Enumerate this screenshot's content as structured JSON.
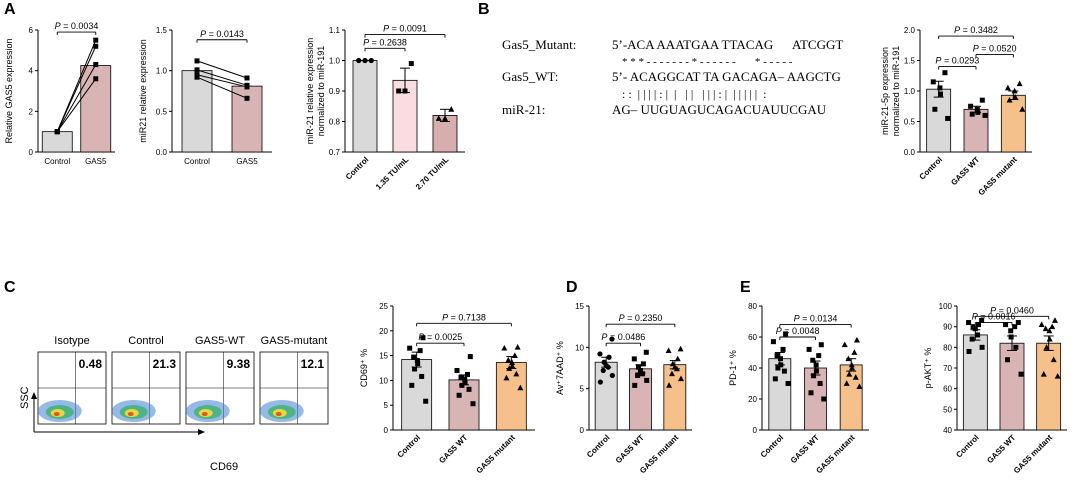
{
  "panel_labels": {
    "A": "A",
    "B": "B",
    "C": "C",
    "D": "D",
    "E": "E"
  },
  "sequence": {
    "rows": [
      {
        "name": "Gas5_Mutant:",
        "seq": "5’-ACA AAATGAA TTACAG      ATCGGT"
      },
      {
        "name": "",
        "seq": "* * * - - - - - - - * - - - - - -       * - - - - -"
      },
      {
        "name": "Gas5_WT:",
        "seq": "5’- ACAGGCAT TA GACAGA– AAGCTG"
      },
      {
        "name": "",
        "seq": ": :  | | | | : |  |   | |   | | | : |  | | | | |  :"
      },
      {
        "name": "miR-21:",
        "seq": "AG– UUGUAGUCAGACUAUUCGAU"
      }
    ]
  },
  "flow": {
    "y_axis_label": "SSC",
    "x_axis_label": "CD69",
    "panels": [
      {
        "title": "Isotype",
        "value": "0.48"
      },
      {
        "title": "Control",
        "value": "21.3"
      },
      {
        "title": "GAS5-WT",
        "value": "9.38"
      },
      {
        "title": "GAS5-mutant",
        "value": "12.1"
      }
    ]
  },
  "colors": {
    "gray": "#d9d9d9",
    "pink": "#f9dde0",
    "rose": "#d8b4b4",
    "mauve": "#d6aeae",
    "orange": "#f5c08a"
  },
  "chart_data": [
    {
      "id": "A1",
      "type": "bar",
      "ylabel": "Relative GAS5 expression",
      "ylim": [
        0,
        6
      ],
      "yticks": [
        0,
        2,
        4,
        6
      ],
      "categories": [
        "Control",
        "GAS5"
      ],
      "values": [
        1.0,
        4.25
      ],
      "colors": [
        "#d9d9d9",
        "#d8b4b4"
      ],
      "error": [
        0,
        0
      ],
      "paired_lines": [
        [
          1.0,
          5.5
        ],
        [
          1.0,
          5.2
        ],
        [
          1.0,
          4.3
        ],
        [
          1.0,
          3.6
        ]
      ],
      "marker": "square",
      "sig": [
        {
          "a": 0,
          "b": 1,
          "level": 5.9,
          "label": "P = 0.0034"
        }
      ]
    },
    {
      "id": "A2",
      "type": "bar",
      "ylabel": "miR21 relative expression",
      "ylim": [
        0.0,
        1.5
      ],
      "yticks": [
        0.0,
        0.5,
        1.0,
        1.5
      ],
      "categories": [
        "Control",
        "GAS5"
      ],
      "values": [
        1.0,
        0.81
      ],
      "colors": [
        "#d9d9d9",
        "#d8b4b4"
      ],
      "error": [
        0,
        0
      ],
      "paired_lines": [
        [
          1.12,
          0.91
        ],
        [
          1.01,
          0.82
        ],
        [
          0.95,
          0.8
        ],
        [
          0.92,
          0.66
        ]
      ],
      "marker": "square",
      "sig": [
        {
          "a": 0,
          "b": 1,
          "level": 1.38,
          "label": "P = 0.0143"
        }
      ]
    },
    {
      "id": "A3",
      "type": "bar",
      "ylabel": "miR-21 relative expression normalized to miR-191",
      "ylim": [
        0.7,
        1.1
      ],
      "yticks": [
        0.7,
        0.8,
        0.9,
        1.0,
        1.1
      ],
      "categories": [
        "Control",
        "1.35 TU/mL",
        "2.70 TU/mL"
      ],
      "values": [
        1.0,
        0.935,
        0.82
      ],
      "colors": [
        "#d9d9d9",
        "#f9dde0",
        "#d6aeae"
      ],
      "error": [
        0,
        0.04,
        0.02
      ],
      "points": [
        [
          1.0,
          1.0,
          1.0
        ],
        [
          0.99,
          0.9,
          0.9
        ],
        [
          0.84,
          0.81,
          0.81
        ]
      ],
      "markers": [
        "circle",
        "square",
        "triangle"
      ],
      "sig": [
        {
          "a": 0,
          "b": 1,
          "level": 1.04,
          "label": "P = 0.2638"
        },
        {
          "a": 0,
          "b": 2,
          "level": 1.085,
          "label": "P = 0.0091"
        }
      ]
    },
    {
      "id": "B",
      "type": "bar",
      "ylabel": "miR-21-5p expression normalized to miR-191",
      "ylim": [
        0.0,
        2.0
      ],
      "yticks": [
        0.0,
        0.5,
        1.0,
        1.5,
        2.0
      ],
      "categories": [
        "Control",
        "GAS5 WT",
        "GAS5 mutant"
      ],
      "values": [
        1.03,
        0.7,
        0.93
      ],
      "colors": [
        "#d9d9d9",
        "#d8b4b4",
        "#f5c08a"
      ],
      "error": [
        0.13,
        0.05,
        0.07
      ],
      "points": [
        [
          1.3,
          1.15,
          1.05,
          0.95,
          0.7,
          0.55
        ],
        [
          0.85,
          0.75,
          0.7,
          0.65,
          0.62,
          0.6
        ],
        [
          1.12,
          1.05,
          1.0,
          0.9,
          0.85,
          0.7
        ]
      ],
      "markers": [
        "square",
        "square",
        "triangle"
      ],
      "sig": [
        {
          "a": 0,
          "b": 1,
          "level": 1.4,
          "label": "P = 0.0293"
        },
        {
          "a": 1,
          "b": 2,
          "level": 1.6,
          "label": "P = 0.0520"
        },
        {
          "a": 0,
          "b": 2,
          "level": 1.9,
          "label": "P = 0.3482"
        }
      ]
    },
    {
      "id": "C",
      "type": "bar",
      "ylabel": "CD69⁺ %",
      "ylim": [
        0,
        25
      ],
      "yticks": [
        0,
        5,
        10,
        15,
        20,
        25
      ],
      "categories": [
        "Control",
        "GAS5 WT",
        "GAS5 mutant"
      ],
      "values": [
        14.2,
        10.1,
        13.6
      ],
      "colors": [
        "#d9d9d9",
        "#d8b4b4",
        "#f5c08a"
      ],
      "error": [
        1.5,
        1.0,
        1.2
      ],
      "points": [
        [
          18.6,
          16.5,
          16.0,
          14.7,
          14.0,
          13.4,
          12.3,
          10.8,
          9.0,
          5.8
        ],
        [
          14.8,
          12.0,
          11.2,
          10.6,
          10.2,
          9.6,
          9.0,
          8.2,
          7.0,
          5.3
        ],
        [
          16.7,
          16.5,
          15.0,
          14.1,
          13.6,
          12.9,
          12.4,
          11.3,
          10.5,
          8.5
        ]
      ],
      "markers": [
        "square",
        "square",
        "triangle"
      ],
      "sig": [
        {
          "a": 0,
          "b": 1,
          "level": 17.5,
          "label": "P = 0.0025"
        },
        {
          "a": 0,
          "b": 2,
          "level": 21.5,
          "label": "P = 0.7138"
        }
      ]
    },
    {
      "id": "D",
      "type": "bar",
      "ylabel": "Av⁺7AAD⁺ %",
      "ylim": [
        0,
        15
      ],
      "yticks": [
        0,
        5,
        10,
        15
      ],
      "categories": [
        "Control",
        "GAS5 WT",
        "GAS5 mutant"
      ],
      "values": [
        8.2,
        7.4,
        7.9
      ],
      "colors": [
        "#d9d9d9",
        "#d8b4b4",
        "#f5c08a"
      ],
      "error": [
        0.6,
        0.5,
        0.5
      ],
      "points": [
        [
          11.0,
          9.2,
          8.8,
          8.2,
          7.8,
          7.6,
          7.2,
          6.6,
          5.8
        ],
        [
          9.4,
          8.6,
          8.0,
          7.6,
          7.2,
          6.8,
          6.6,
          6.0,
          5.4
        ],
        [
          9.8,
          9.6,
          8.6,
          8.0,
          7.6,
          7.4,
          6.8,
          6.2,
          5.4
        ]
      ],
      "markers": [
        "circle",
        "square",
        "triangle"
      ],
      "sig": [
        {
          "a": 0,
          "b": 1,
          "level": 10.5,
          "label": "P = 0.0486"
        },
        {
          "a": 0,
          "b": 2,
          "level": 12.8,
          "label": "P = 0.2350"
        }
      ]
    },
    {
      "id": "E1",
      "type": "bar",
      "ylabel": "PD-1⁺ %",
      "ylim": [
        0,
        80
      ],
      "yticks": [
        0,
        20,
        40,
        60,
        80
      ],
      "categories": [
        "Control",
        "GAS5 WT",
        "GAS5 mutant"
      ],
      "values": [
        46,
        40,
        42
      ],
      "colors": [
        "#d9d9d9",
        "#d8b4b4",
        "#f5c08a"
      ],
      "error": [
        4,
        4.5,
        4
      ],
      "points": [
        [
          62,
          57,
          52,
          48,
          46,
          42,
          40,
          38,
          33,
          30
        ],
        [
          55,
          52,
          48,
          45,
          42,
          38,
          35,
          30,
          24,
          20
        ],
        [
          58,
          55,
          50,
          46,
          42,
          40,
          36,
          34,
          30,
          28
        ]
      ],
      "markers": [
        "square",
        "square",
        "triangle"
      ],
      "sig": [
        {
          "a": 0,
          "b": 1,
          "level": 60,
          "label": "P = 0.0048"
        },
        {
          "a": 0,
          "b": 2,
          "level": 68,
          "label": "P = 0.0134"
        }
      ]
    },
    {
      "id": "E2",
      "type": "bar",
      "ylabel": "p-AKT⁺ %",
      "ylim": [
        40,
        100
      ],
      "yticks": [
        40,
        50,
        60,
        70,
        80,
        90,
        100
      ],
      "categories": [
        "Control",
        "GAS5 WT",
        "GAS5 mutant"
      ],
      "values": [
        86,
        82,
        82
      ],
      "colors": [
        "#d9d9d9",
        "#d8b4b4",
        "#f5c08a"
      ],
      "error": [
        2.5,
        3.5,
        3.5
      ],
      "points": [
        [
          93,
          92,
          91,
          90,
          89,
          86,
          84,
          80,
          78
        ],
        [
          92,
          91,
          90,
          88,
          85,
          80,
          74,
          67
        ],
        [
          93,
          91,
          90,
          89,
          88,
          84,
          80,
          74,
          67,
          66
        ]
      ],
      "markers": [
        "square",
        "square",
        "triangle"
      ],
      "sig": [
        {
          "a": 0,
          "b": 1,
          "level": 92,
          "label": "P = 0.0016"
        },
        {
          "a": 0,
          "b": 2,
          "level": 95,
          "label": "P = 0.0460"
        }
      ]
    }
  ]
}
